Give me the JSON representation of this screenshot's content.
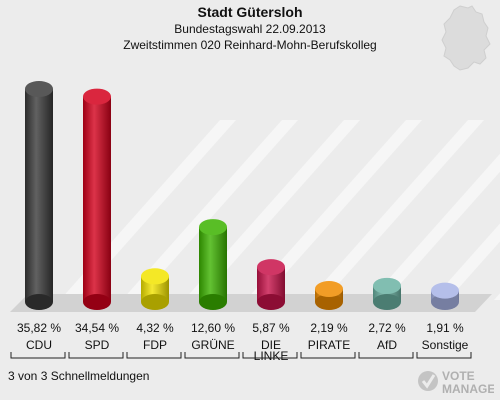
{
  "header": {
    "title": "Stadt Gütersloh",
    "subtitle1": "Bundestagswahl 22.09.2013",
    "subtitle2": "Zweitstimmen 020 Reinhard-Mohn-Berufskolleg"
  },
  "footer": {
    "status": "3 von 3 Schnellmeldungen"
  },
  "logo": {
    "line1": "VOTE",
    "line2": "MANAGER"
  },
  "chart_data": {
    "type": "bar",
    "title": "Stadt Gütersloh",
    "categories": [
      "CDU",
      "SPD",
      "FDP",
      "GRÜNE",
      "DIE LINKE",
      "PIRATE",
      "AfD",
      "Sonstige"
    ],
    "values": [
      35.82,
      34.54,
      4.32,
      12.6,
      5.87,
      2.19,
      2.72,
      1.91
    ],
    "value_labels": [
      "35,82 %",
      "34,54 %",
      "4,32 %",
      "12,60 %",
      "5,87 %",
      "2,19 %",
      "2,72 %",
      "1,91 %"
    ],
    "colors": [
      "#3a3a3a",
      "#d3001c",
      "#f2e400",
      "#3cb300",
      "#c8124a",
      "#f08c00",
      "#6bb3a3",
      "#a8b4e6"
    ],
    "ylim": [
      0,
      38
    ],
    "grid": false,
    "legend": "none"
  }
}
